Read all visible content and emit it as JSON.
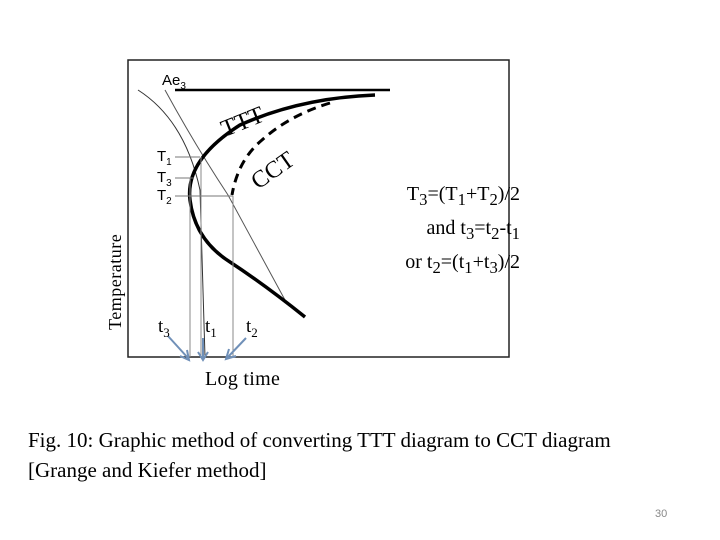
{
  "diagram": {
    "ae3_label": "Ae",
    "ae3_sub": "3",
    "ttt_label": "TTT",
    "cct_label": "CCT",
    "temp_labels": [
      {
        "base": "T",
        "sub": "1"
      },
      {
        "base": "T",
        "sub": "3"
      },
      {
        "base": "T",
        "sub": "2"
      }
    ],
    "time_labels": [
      {
        "base": "t",
        "sub": "3"
      },
      {
        "base": "t",
        "sub": "1"
      },
      {
        "base": "t",
        "sub": "2"
      }
    ],
    "x_axis_label": "Log  time",
    "y_axis_label": "Temperature"
  },
  "formula": {
    "line1": {
      "p1": "T",
      "s1": "3",
      "p2": "=(T",
      "s2": "1",
      "p3": "+T",
      "s3": "2",
      "p4": ")/2"
    },
    "line2": {
      "p1": "and  t",
      "s1": "3",
      "p2": "=t",
      "s2": "2",
      "p3": "-t",
      "s3": "1"
    },
    "line3": {
      "p1": "or t",
      "s1": "2",
      "p2": "=(t",
      "s2": "1",
      "p3": "+t",
      "s3": "3",
      "p4": ")/2"
    }
  },
  "caption": {
    "line1": "Fig. 10: Graphic method of converting TTT diagram to CCT diagram",
    "line2": "[Grange and Kiefer method]"
  },
  "page_number": "30"
}
